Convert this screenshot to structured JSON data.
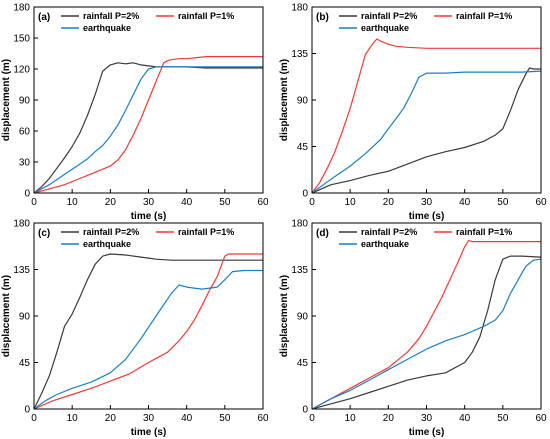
{
  "colors": {
    "black": "#3a3a3a",
    "red": "#ee3b34",
    "blue": "#1d7ec2",
    "axis": "#000000"
  },
  "chart_data": [
    {
      "type": "line",
      "panel_label": "(a)",
      "xlabel": "time (s)",
      "ylabel": "displacement (m)",
      "xlim": [
        0,
        60
      ],
      "ylim": [
        0,
        180
      ],
      "xticks": [
        "0",
        "10",
        "20",
        "30",
        "40",
        "50",
        "60"
      ],
      "yticks": [
        "0",
        "30",
        "60",
        "90",
        "120",
        "150",
        "180"
      ],
      "legend": "top",
      "series": [
        {
          "name": "rainfall P=2%",
          "color": "#3a3a3a",
          "x": [
            0,
            2,
            4,
            6,
            8,
            10,
            12,
            14,
            16,
            18,
            20,
            22,
            24,
            26,
            28,
            30,
            32,
            34,
            36,
            40,
            45,
            50,
            55,
            60
          ],
          "y": [
            0,
            6,
            14,
            24,
            34,
            45,
            58,
            75,
            95,
            118,
            124,
            126,
            125,
            126,
            124,
            123,
            122,
            122,
            122,
            122,
            121,
            121,
            121,
            121
          ]
        },
        {
          "name": "rainfall P=1%",
          "color": "#ee3b34",
          "x": [
            0,
            4,
            8,
            12,
            16,
            18,
            20,
            22,
            24,
            26,
            28,
            30,
            32,
            34,
            35,
            36,
            38,
            40,
            45,
            50,
            55,
            60
          ],
          "y": [
            0,
            4,
            8,
            14,
            20,
            23,
            26,
            32,
            42,
            56,
            72,
            90,
            108,
            126,
            128,
            129,
            130,
            130,
            132,
            132,
            132,
            132
          ]
        },
        {
          "name": "earthquake",
          "color": "#1d7ec2",
          "x": [
            0,
            4,
            8,
            12,
            14,
            16,
            18,
            20,
            22,
            24,
            26,
            28,
            30,
            31,
            32,
            34,
            40,
            45,
            50,
            55,
            60
          ],
          "y": [
            0,
            8,
            18,
            28,
            33,
            40,
            46,
            55,
            66,
            80,
            95,
            110,
            120,
            121,
            122,
            122,
            122,
            122,
            122,
            122,
            122
          ]
        }
      ]
    },
    {
      "type": "line",
      "panel_label": "(b)",
      "xlabel": "time (s)",
      "ylabel": "displacement (m)",
      "xlim": [
        0,
        60
      ],
      "ylim": [
        0,
        180
      ],
      "xticks": [
        "0",
        "10",
        "20",
        "30",
        "40",
        "50",
        "60"
      ],
      "yticks": [
        "0",
        "45",
        "90",
        "135",
        "180"
      ],
      "legend": "top",
      "series": [
        {
          "name": "rainfall P=2%",
          "color": "#3a3a3a",
          "x": [
            0,
            5,
            10,
            15,
            20,
            25,
            30,
            35,
            40,
            45,
            48,
            50,
            52,
            54,
            56,
            57,
            58,
            60
          ],
          "y": [
            0,
            8,
            12,
            17,
            21,
            28,
            35,
            40,
            44,
            50,
            56,
            62,
            80,
            100,
            115,
            121,
            120,
            120
          ]
        },
        {
          "name": "rainfall P=1%",
          "color": "#ee3b34",
          "x": [
            0,
            2,
            4,
            6,
            8,
            10,
            12,
            14,
            16,
            17,
            18,
            20,
            22,
            25,
            30,
            40,
            50,
            60
          ],
          "y": [
            0,
            10,
            24,
            40,
            60,
            82,
            108,
            134,
            145,
            149,
            147,
            144,
            142,
            141,
            140,
            140,
            140,
            140
          ]
        },
        {
          "name": "earthquake",
          "color": "#1d7ec2",
          "x": [
            0,
            3,
            6,
            10,
            14,
            18,
            20,
            22,
            24,
            26,
            28,
            30,
            35,
            40,
            45,
            50,
            55,
            60
          ],
          "y": [
            0,
            8,
            16,
            26,
            38,
            52,
            62,
            72,
            82,
            96,
            112,
            116,
            116,
            117,
            117,
            117,
            117,
            118
          ]
        }
      ]
    },
    {
      "type": "line",
      "panel_label": "(c)",
      "xlabel": "time (s)",
      "ylabel": "displacement (m)",
      "xlim": [
        0,
        60
      ],
      "ylim": [
        0,
        180
      ],
      "xticks": [
        "0",
        "10",
        "20",
        "30",
        "40",
        "50",
        "60"
      ],
      "yticks": [
        "0",
        "45",
        "90",
        "135",
        "180"
      ],
      "legend": "top",
      "series": [
        {
          "name": "rainfall P=2%",
          "color": "#3a3a3a",
          "x": [
            0,
            2,
            4,
            6,
            8,
            10,
            12,
            14,
            16,
            18,
            20,
            24,
            28,
            30,
            32,
            36,
            40,
            45,
            50,
            55,
            60
          ],
          "y": [
            0,
            15,
            32,
            55,
            80,
            92,
            108,
            125,
            140,
            148,
            150,
            149,
            147,
            146,
            145,
            144,
            144,
            144,
            144,
            144,
            144
          ]
        },
        {
          "name": "rainfall P=1%",
          "color": "#ee3b34",
          "x": [
            0,
            5,
            10,
            15,
            20,
            25,
            30,
            35,
            38,
            40,
            42,
            44,
            46,
            48,
            50,
            51,
            52,
            55,
            60
          ],
          "y": [
            0,
            8,
            14,
            20,
            27,
            34,
            45,
            55,
            66,
            75,
            86,
            100,
            115,
            128,
            148,
            150,
            150,
            150,
            150
          ]
        },
        {
          "name": "earthquake",
          "color": "#1d7ec2",
          "x": [
            0,
            3,
            6,
            10,
            15,
            20,
            24,
            28,
            32,
            36,
            38,
            40,
            42,
            44,
            46,
            48,
            50,
            52,
            55,
            60
          ],
          "y": [
            0,
            8,
            14,
            20,
            26,
            35,
            48,
            68,
            90,
            112,
            120,
            118,
            117,
            116,
            117,
            118,
            125,
            133,
            134,
            134
          ]
        }
      ]
    },
    {
      "type": "line",
      "panel_label": "(d)",
      "xlabel": "time (s)",
      "ylabel": "displacement (m)",
      "xlim": [
        0,
        60
      ],
      "ylim": [
        0,
        180
      ],
      "xticks": [
        "0",
        "10",
        "20",
        "30",
        "40",
        "50",
        "60"
      ],
      "yticks": [
        "0",
        "45",
        "90",
        "135",
        "180"
      ],
      "legend": "top",
      "series": [
        {
          "name": "rainfall P=2%",
          "color": "#3a3a3a",
          "x": [
            0,
            5,
            10,
            15,
            20,
            25,
            30,
            35,
            40,
            42,
            44,
            46,
            48,
            50,
            52,
            55,
            60
          ],
          "y": [
            0,
            5,
            10,
            16,
            22,
            28,
            32,
            35,
            45,
            55,
            70,
            95,
            125,
            145,
            148,
            148,
            147
          ]
        },
        {
          "name": "rainfall P=1%",
          "color": "#ee3b34",
          "x": [
            0,
            5,
            10,
            15,
            20,
            25,
            28,
            30,
            32,
            34,
            36,
            38,
            40,
            41,
            42,
            45,
            50,
            55,
            60
          ],
          "y": [
            0,
            10,
            20,
            30,
            40,
            55,
            68,
            80,
            94,
            108,
            124,
            140,
            157,
            163,
            162,
            162,
            162,
            162,
            162
          ]
        },
        {
          "name": "earthquake",
          "color": "#1d7ec2",
          "x": [
            0,
            5,
            10,
            15,
            20,
            25,
            30,
            35,
            40,
            45,
            48,
            50,
            52,
            54,
            56,
            58,
            60
          ],
          "y": [
            0,
            10,
            18,
            28,
            38,
            48,
            58,
            66,
            72,
            80,
            86,
            95,
            112,
            125,
            138,
            144,
            145
          ]
        }
      ]
    }
  ]
}
